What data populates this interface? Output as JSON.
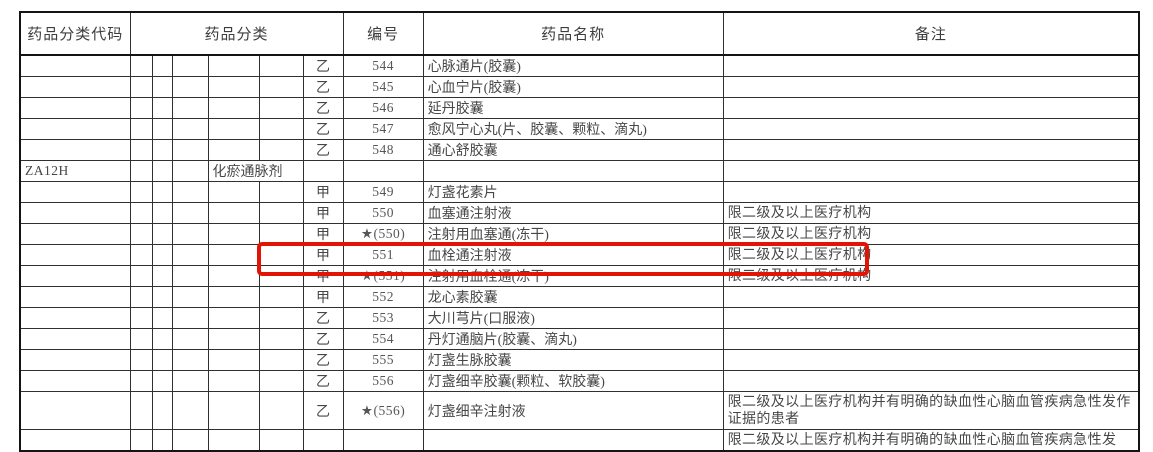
{
  "page": {
    "background": "#ffffff"
  },
  "annotation": {
    "shape": "red-box",
    "color": "#e21405",
    "highlights_number": "★(551)"
  },
  "table": {
    "headers": {
      "code": "药品分类代码",
      "category": "药品分类",
      "number": "编号",
      "name": "药品名称",
      "remark": "备注"
    },
    "rows": [
      {
        "kind": "drug",
        "cls": "乙",
        "num": "544",
        "name": "心脉通片(胶囊)",
        "remark": ""
      },
      {
        "kind": "drug",
        "cls": "乙",
        "num": "545",
        "name": "心血宁片(胶囊)",
        "remark": ""
      },
      {
        "kind": "drug",
        "cls": "乙",
        "num": "546",
        "name": "延丹胶囊",
        "remark": ""
      },
      {
        "kind": "drug",
        "cls": "乙",
        "num": "547",
        "name": "愈风宁心丸(片、胶囊、颗粒、滴丸)",
        "remark": ""
      },
      {
        "kind": "drug",
        "cls": "乙",
        "num": "548",
        "name": "通心舒胶囊",
        "remark": ""
      },
      {
        "kind": "category",
        "code": "ZA12H",
        "category": "化瘀通脉剂"
      },
      {
        "kind": "drug",
        "cls": "甲",
        "num": "549",
        "name": "灯盏花素片",
        "remark": ""
      },
      {
        "kind": "drug",
        "cls": "甲",
        "num": "550",
        "name": "血塞通注射液",
        "remark": "限二级及以上医疗机构"
      },
      {
        "kind": "drug",
        "cls": "甲",
        "num": "★(550)",
        "name": "注射用血塞通(冻干)",
        "remark": "限二级及以上医疗机构"
      },
      {
        "kind": "drug",
        "cls": "甲",
        "num": "551",
        "name": "血栓通注射液",
        "remark": "限二级及以上医疗机构"
      },
      {
        "kind": "drug",
        "cls": "甲",
        "num": "★(551)",
        "name": "注射用血栓通(冻干)",
        "remark": "限二级及以上医疗机构",
        "highlighted": true
      },
      {
        "kind": "drug",
        "cls": "甲",
        "num": "552",
        "name": "龙心素胶囊",
        "remark": ""
      },
      {
        "kind": "drug",
        "cls": "乙",
        "num": "553",
        "name": "大川芎片(口服液)",
        "remark": ""
      },
      {
        "kind": "drug",
        "cls": "乙",
        "num": "554",
        "name": "丹灯通脑片(胶囊、滴丸)",
        "remark": ""
      },
      {
        "kind": "drug",
        "cls": "乙",
        "num": "555",
        "name": "灯盏生脉胶囊",
        "remark": ""
      },
      {
        "kind": "drug",
        "cls": "乙",
        "num": "556",
        "name": "灯盏细辛胶囊(颗粒、软胶囊)",
        "remark": ""
      },
      {
        "kind": "drug",
        "cls": "乙",
        "num": "★(556)",
        "name": "灯盏细辛注射液",
        "remark": "限二级及以上医疗机构并有明确的缺血性心脑血管疾病急性发作证据的患者",
        "tall": true
      },
      {
        "kind": "partial",
        "cls": "",
        "num": "",
        "name": "",
        "remark": "限二级及以上医疗机构并有明确的缺血性心脑血管疾病急性发"
      }
    ]
  }
}
